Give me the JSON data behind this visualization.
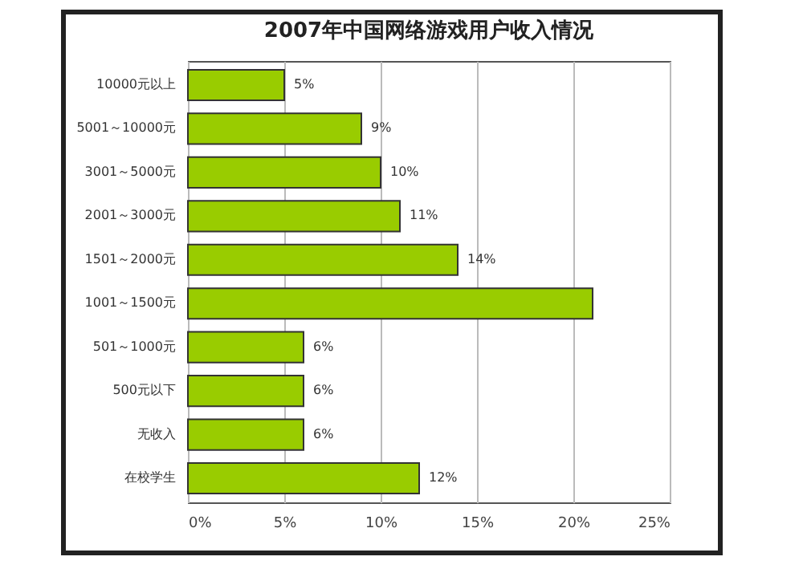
{
  "chart_data": {
    "type": "bar",
    "orientation": "horizontal",
    "title": "2007年中国网络游戏用户收入情况",
    "categories": [
      "10000元以上",
      "5001～10000元",
      "3001～5000元",
      "2001～3000元",
      "1501～2000元",
      "1001～1500元",
      "501～1000元",
      "500元以下",
      "无收入",
      "在校学生"
    ],
    "values": [
      5,
      9,
      10,
      11,
      14,
      21,
      6,
      6,
      6,
      12
    ],
    "value_labels": [
      "5%",
      "9%",
      "10%",
      "11%",
      "14%",
      null,
      "6%",
      "6%",
      "6%",
      "12%"
    ],
    "color": "#99cc00",
    "xlim": [
      0,
      25
    ],
    "xticks": [
      {
        "value": 0,
        "label": "0%"
      },
      {
        "value": 5,
        "label": "5%"
      },
      {
        "value": 10,
        "label": "10%"
      },
      {
        "value": 15,
        "label": "15%"
      },
      {
        "value": 20,
        "label": "20%"
      },
      {
        "value": 25,
        "label": "25%"
      }
    ],
    "grid": "x"
  }
}
